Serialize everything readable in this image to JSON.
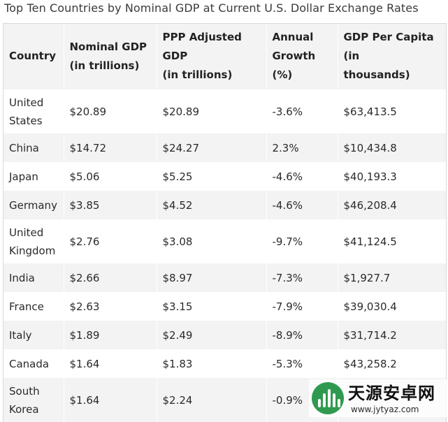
{
  "caption": "Top Ten Countries by Nominal GDP at Current U.S. Dollar Exchange Rates",
  "table": {
    "headers": [
      [
        "Country"
      ],
      [
        "Nominal GDP",
        "(in trillions)"
      ],
      [
        "PPP Adjusted GDP",
        "(in trillions)"
      ],
      [
        "Annual",
        "Growth (%)"
      ],
      [
        "GDP Per Capita (in",
        "thousands)"
      ]
    ],
    "rows": [
      {
        "country": [
          "United",
          "States"
        ],
        "nominal": "$20.89",
        "ppp": "$20.89",
        "growth": "-3.6%",
        "per_capita": "$63,413.5"
      },
      {
        "country": [
          "China"
        ],
        "nominal": "$14.72",
        "ppp": "$24.27",
        "growth": "2.3%",
        "per_capita": "$10,434.8"
      },
      {
        "country": [
          "Japan"
        ],
        "nominal": "$5.06",
        "ppp": "$5.25",
        "growth": "-4.6%",
        "per_capita": "$40,193.3"
      },
      {
        "country": [
          "Germany"
        ],
        "nominal": "$3.85",
        "ppp": "$4.52",
        "growth": "-4.6%",
        "per_capita": "$46,208.4"
      },
      {
        "country": [
          "United",
          "Kingdom"
        ],
        "nominal": "$2.76",
        "ppp": "$3.08",
        "growth": "-9.7%",
        "per_capita": "$41,124.5"
      },
      {
        "country": [
          "India"
        ],
        "nominal": "$2.66",
        "ppp": "$8.97",
        "growth": "-7.3%",
        "per_capita": "$1,927.7"
      },
      {
        "country": [
          "France"
        ],
        "nominal": "$2.63",
        "ppp": "$3.15",
        "growth": "-7.9%",
        "per_capita": "$39,030.4"
      },
      {
        "country": [
          "Italy"
        ],
        "nominal": "$1.89",
        "ppp": "$2.49",
        "growth": "-8.9%",
        "per_capita": "$31,714.2"
      },
      {
        "country": [
          "Canada"
        ],
        "nominal": "$1.64",
        "ppp": "$1.83",
        "growth": "-5.3%",
        "per_capita": "$43,258.2"
      },
      {
        "country": [
          "South",
          "Korea"
        ],
        "nominal": "$1.64",
        "ppp": "$2.24",
        "growth": "-0.9%",
        "per_capita": ""
      }
    ]
  },
  "watermark": {
    "title": "天源安卓网",
    "url": "www.jytyaz.com",
    "logo_color": "#2f9a4f"
  }
}
